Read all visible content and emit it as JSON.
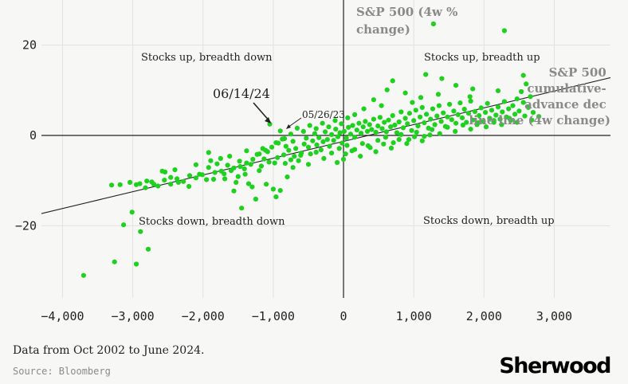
{
  "chart_data": {
    "type": "scatter",
    "title": "",
    "xlabel": "",
    "ylabel": "S&P 500 (4w % change)",
    "xlabel_right": "S&P 500 cumulative-advance decline line (4w change)",
    "xlim": [
      -4300,
      3800
    ],
    "ylim": [
      -36,
      30
    ],
    "x_ticks": [
      -4000,
      -3000,
      -2000,
      -1000,
      0,
      1000,
      2000,
      3000
    ],
    "x_tick_labels": [
      "−4,000",
      "−3,000",
      "−2,000",
      "−1,000",
      "0",
      "1,000",
      "2,000",
      "3,000"
    ],
    "y_ticks": [
      -20,
      0,
      20
    ],
    "y_tick_labels": [
      "−20",
      "0",
      "20"
    ],
    "grid": true,
    "point_color": "#1fd11f",
    "trendline": {
      "x1": -4300,
      "y1": -17.3,
      "x2": 3800,
      "y2": 12.8
    },
    "quadrant_labels": [
      "Stocks up, breadth down",
      "Stocks up, breadth up",
      "Stocks down, breadth down",
      "Stocks down, breadth up"
    ],
    "annotations": [
      {
        "text": "06/14/24",
        "x": -1050,
        "y": 2.5
      },
      {
        "text": "05/26/23",
        "x": -900,
        "y": 1.0
      }
    ],
    "points": [
      [
        -3700,
        -31
      ],
      [
        -3260,
        -28
      ],
      [
        -2950,
        -28.5
      ],
      [
        -3130,
        -19.8
      ],
      [
        -3010,
        -17
      ],
      [
        -2890,
        -21.3
      ],
      [
        -2780,
        -25.2
      ],
      [
        -3300,
        -11
      ],
      [
        -2950,
        -10.9
      ],
      [
        -2700,
        -10.8
      ],
      [
        -2540,
        -8.1
      ],
      [
        -2460,
        -9.3
      ],
      [
        -2350,
        -10.4
      ],
      [
        -2200,
        -11.3
      ],
      [
        -2100,
        -6.5
      ],
      [
        -1950,
        -9.8
      ],
      [
        -1850,
        -9.7
      ],
      [
        -1800,
        -6.3
      ],
      [
        -1700,
        -8.5
      ],
      [
        -1600,
        -7.8
      ],
      [
        -1560,
        -12.3
      ],
      [
        -1500,
        -9.1
      ],
      [
        -1400,
        -8.6
      ],
      [
        -1350,
        -10.7
      ],
      [
        -1300,
        -11.4
      ],
      [
        -1200,
        -7.8
      ],
      [
        -1130,
        -5.2
      ],
      [
        -1100,
        -10.8
      ],
      [
        -1000,
        -11.9
      ],
      [
        -980,
        -6.1
      ],
      [
        -900,
        -12.2
      ],
      [
        -850,
        -4.3
      ],
      [
        -800,
        -9.2
      ],
      [
        -750,
        -5.4
      ],
      [
        -700,
        -4.6
      ],
      [
        -1450,
        -16.1
      ],
      [
        -1250,
        -14.1
      ],
      [
        -960,
        -13.6
      ],
      [
        -2580,
        -7.9
      ],
      [
        -2800,
        -10.1
      ],
      [
        -2050,
        -8.6
      ],
      [
        -1920,
        -3.8
      ],
      [
        -1750,
        -5.1
      ],
      [
        -1620,
        -4.6
      ],
      [
        -1480,
        -5.7
      ],
      [
        -1380,
        -3.4
      ],
      [
        -1230,
        -4.2
      ],
      [
        -1150,
        -2.9
      ],
      [
        -1080,
        -3.6
      ],
      [
        -1050,
        2.5
      ],
      [
        -900,
        1.0
      ],
      [
        -960,
        -1.6
      ],
      [
        -870,
        -0.8
      ],
      [
        -820,
        -2.4
      ],
      [
        -780,
        -3.3
      ],
      [
        -720,
        -1.3
      ],
      [
        -680,
        -2.9
      ],
      [
        -640,
        -5.6
      ],
      [
        -600,
        -3.9
      ],
      [
        -560,
        -1.9
      ],
      [
        -530,
        -0.6
      ],
      [
        -500,
        -2.6
      ],
      [
        -470,
        -4.1
      ],
      [
        -440,
        -1.2
      ],
      [
        -410,
        0.4
      ],
      [
        -380,
        -2.1
      ],
      [
        -350,
        -0.5
      ],
      [
        -320,
        -3.2
      ],
      [
        -290,
        -1.4
      ],
      [
        -260,
        0.8
      ],
      [
        -230,
        -0.9
      ],
      [
        -200,
        -2.4
      ],
      [
        -170,
        0.2
      ],
      [
        -140,
        -1.1
      ],
      [
        -110,
        1.4
      ],
      [
        -80,
        -0.3
      ],
      [
        -50,
        0.6
      ],
      [
        -20,
        -1.7
      ],
      [
        10,
        0.9
      ],
      [
        40,
        -0.6
      ],
      [
        70,
        1.8
      ],
      [
        100,
        0.3
      ],
      [
        130,
        2.2
      ],
      [
        160,
        -0.4
      ],
      [
        190,
        1.2
      ],
      [
        220,
        2.7
      ],
      [
        250,
        0.5
      ],
      [
        280,
        1.9
      ],
      [
        310,
        3.1
      ],
      [
        340,
        0.9
      ],
      [
        370,
        2.4
      ],
      [
        400,
        1.3
      ],
      [
        430,
        3.6
      ],
      [
        460,
        0.7
      ],
      [
        490,
        2.1
      ],
      [
        520,
        4.0
      ],
      [
        550,
        1.5
      ],
      [
        580,
        2.9
      ],
      [
        610,
        0.8
      ],
      [
        640,
        3.4
      ],
      [
        670,
        1.9
      ],
      [
        700,
        4.4
      ],
      [
        730,
        2.3
      ],
      [
        760,
        0.6
      ],
      [
        790,
        3.0
      ],
      [
        820,
        5.2
      ],
      [
        850,
        1.7
      ],
      [
        880,
        3.8
      ],
      [
        910,
        2.6
      ],
      [
        940,
        4.9
      ],
      [
        970,
        1.1
      ],
      [
        1000,
        3.3
      ],
      [
        1030,
        5.6
      ],
      [
        1060,
        2.1
      ],
      [
        1090,
        4.1
      ],
      [
        1120,
        6.2
      ],
      [
        1150,
        2.8
      ],
      [
        1180,
        4.7
      ],
      [
        1210,
        1.6
      ],
      [
        1240,
        3.6
      ],
      [
        1270,
        5.9
      ],
      [
        1300,
        2.4
      ],
      [
        1330,
        4.3
      ],
      [
        1360,
        6.6
      ],
      [
        1390,
        3.1
      ],
      [
        1420,
        5.0
      ],
      [
        1450,
        2.0
      ],
      [
        1480,
        4.1
      ],
      [
        1510,
        6.9
      ],
      [
        1540,
        3.5
      ],
      [
        1570,
        5.4
      ],
      [
        1600,
        2.7
      ],
      [
        1630,
        4.6
      ],
      [
        1660,
        7.2
      ],
      [
        1690,
        3.9
      ],
      [
        1720,
        5.8
      ],
      [
        1750,
        2.9
      ],
      [
        1780,
        4.9
      ],
      [
        1810,
        7.6
      ],
      [
        1840,
        3.4
      ],
      [
        1870,
        5.3
      ],
      [
        1900,
        2.4
      ],
      [
        1930,
        4.4
      ],
      [
        1960,
        6.1
      ],
      [
        1990,
        3.1
      ],
      [
        2020,
        5.1
      ],
      [
        2050,
        7.1
      ],
      [
        2080,
        3.8
      ],
      [
        2110,
        5.6
      ],
      [
        2140,
        2.9
      ],
      [
        2170,
        4.5
      ],
      [
        2200,
        6.3
      ],
      [
        2230,
        3.6
      ],
      [
        2260,
        5.2
      ],
      [
        2290,
        7.5
      ],
      [
        2320,
        4.1
      ],
      [
        2350,
        5.9
      ],
      [
        2380,
        3.3
      ],
      [
        2410,
        6.6
      ],
      [
        2440,
        4.7
      ],
      [
        2470,
        8.1
      ],
      [
        2500,
        5.4
      ],
      [
        2530,
        9.7
      ],
      [
        2560,
        7.3
      ],
      [
        2600,
        11.4
      ],
      [
        2630,
        6.2
      ],
      [
        2660,
        8.6
      ],
      [
        2700,
        5.1
      ],
      [
        1280,
        24.7
      ],
      [
        2290,
        23.2
      ],
      [
        1170,
        13.5
      ],
      [
        1400,
        12.6
      ],
      [
        1600,
        11.1
      ],
      [
        1840,
        10.3
      ],
      [
        2560,
        13.3
      ],
      [
        700,
        12.1
      ],
      [
        620,
        10.1
      ],
      [
        880,
        9.4
      ],
      [
        1350,
        9.1
      ],
      [
        1800,
        8.6
      ],
      [
        2200,
        9.9
      ],
      [
        1100,
        8.4
      ],
      [
        980,
        7.3
      ],
      [
        540,
        6.6
      ],
      [
        430,
        7.9
      ],
      [
        290,
        5.9
      ],
      [
        160,
        4.6
      ],
      [
        60,
        3.9
      ],
      [
        -30,
        2.6
      ],
      [
        -120,
        3.3
      ],
      [
        -210,
        1.9
      ],
      [
        -300,
        2.7
      ],
      [
        -390,
        1.5
      ],
      [
        -480,
        2.2
      ],
      [
        -570,
        0.9
      ],
      [
        -660,
        1.6
      ],
      [
        -750,
        0.3
      ],
      [
        -840,
        -0.7
      ],
      [
        -930,
        -1.7
      ],
      [
        -1020,
        -2.6
      ],
      [
        -1110,
        -3.3
      ],
      [
        -1200,
        -4.1
      ],
      [
        -1290,
        -5.3
      ],
      [
        -1380,
        -6.1
      ],
      [
        -1470,
        -6.9
      ],
      [
        -1560,
        -7.2
      ],
      [
        -1650,
        -6.6
      ],
      [
        -1740,
        -7.9
      ],
      [
        -1830,
        -8.2
      ],
      [
        -1920,
        -7.1
      ],
      [
        -2010,
        -8.7
      ],
      [
        -2100,
        -9.4
      ],
      [
        -2190,
        -8.9
      ],
      [
        -2280,
        -10.2
      ],
      [
        -2370,
        -9.6
      ],
      [
        -2460,
        -10.8
      ],
      [
        -2550,
        -9.9
      ],
      [
        -2640,
        -11.2
      ],
      [
        -2730,
        -10.3
      ],
      [
        -2820,
        -11.6
      ],
      [
        -2900,
        -10.7
      ],
      [
        -3040,
        -10.4
      ],
      [
        -3180,
        -10.9
      ],
      [
        -2400,
        -7.6
      ],
      [
        -1890,
        -5.6
      ],
      [
        -1690,
        -9.6
      ],
      [
        -1530,
        -10.4
      ],
      [
        -1410,
        -7.4
      ],
      [
        -1320,
        -6.4
      ],
      [
        -1170,
        -6.8
      ],
      [
        -1060,
        -5.9
      ],
      [
        -940,
        -4.9
      ],
      [
        -830,
        -6.2
      ],
      [
        -720,
        -7.1
      ],
      [
        -610,
        -4.4
      ],
      [
        -500,
        -6.4
      ],
      [
        -390,
        -3.7
      ],
      [
        -280,
        -5.1
      ],
      [
        -170,
        -3.9
      ],
      [
        -60,
        -2.9
      ],
      [
        50,
        -2.2
      ],
      [
        160,
        -3.1
      ],
      [
        270,
        -1.8
      ],
      [
        380,
        -2.7
      ],
      [
        490,
        -1.1
      ],
      [
        600,
        -0.4
      ],
      [
        710,
        -1.6
      ],
      [
        820,
        0.2
      ],
      [
        930,
        -0.9
      ],
      [
        1040,
        0.7
      ],
      [
        1150,
        -0.2
      ],
      [
        1260,
        1.3
      ],
      [
        1370,
        0.4
      ],
      [
        1480,
        1.8
      ],
      [
        1590,
        0.9
      ],
      [
        1700,
        2.3
      ],
      [
        1810,
        1.4
      ],
      [
        1920,
        2.8
      ],
      [
        2030,
        1.9
      ],
      [
        2140,
        3.3
      ],
      [
        2250,
        2.4
      ],
      [
        2360,
        3.8
      ],
      [
        2470,
        2.9
      ],
      [
        2580,
        4.3
      ],
      [
        2680,
        3.4
      ],
      [
        2780,
        4.2
      ],
      [
        0,
        -5.3
      ],
      [
        30,
        -4.1
      ],
      [
        -90,
        -6.0
      ],
      [
        120,
        -3.4
      ],
      [
        240,
        -4.6
      ],
      [
        350,
        -2.3
      ],
      [
        460,
        -3.6
      ],
      [
        570,
        -1.9
      ],
      [
        680,
        -2.8
      ],
      [
        790,
        -0.9
      ],
      [
        900,
        -1.8
      ],
      [
        1010,
        -0.3
      ],
      [
        1120,
        -1.2
      ],
      [
        1230,
        0.1
      ]
    ]
  },
  "footer": {
    "note": "Data from Oct 2002 to June 2024.",
    "source": "Source: Bloomberg",
    "brand": "Sherwood"
  },
  "colors": {
    "points": "#1fd11f",
    "grid": "#e2e2e2",
    "axis": "#222222",
    "muted_text": "#8a8a8a"
  }
}
